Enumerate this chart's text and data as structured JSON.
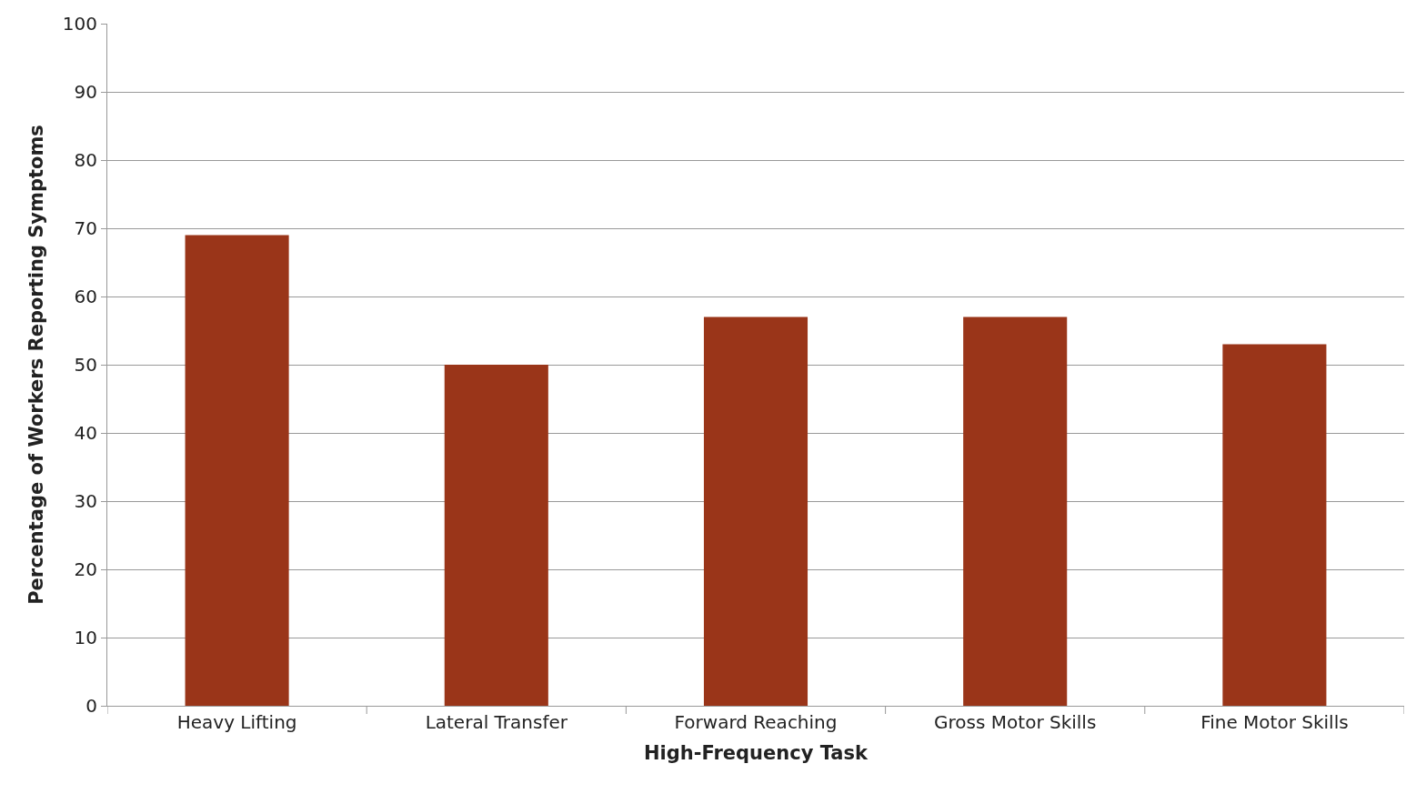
{
  "chart_data": {
    "type": "bar",
    "xlabel": "High-Frequency Task",
    "ylabel": "Percentage of Workers Reporting Symptoms",
    "categories": [
      "Heavy Lifting",
      "Lateral Transfer",
      "Forward Reaching",
      "Gross Motor Skills",
      "Fine Motor Skills"
    ],
    "values": [
      69,
      50,
      57,
      57,
      53
    ],
    "color": "#9a3519",
    "ylim": [
      0,
      100
    ],
    "yticks": [
      0,
      10,
      20,
      30,
      40,
      50,
      60,
      70,
      80,
      90,
      100
    ],
    "grid": "y",
    "legend": false
  }
}
